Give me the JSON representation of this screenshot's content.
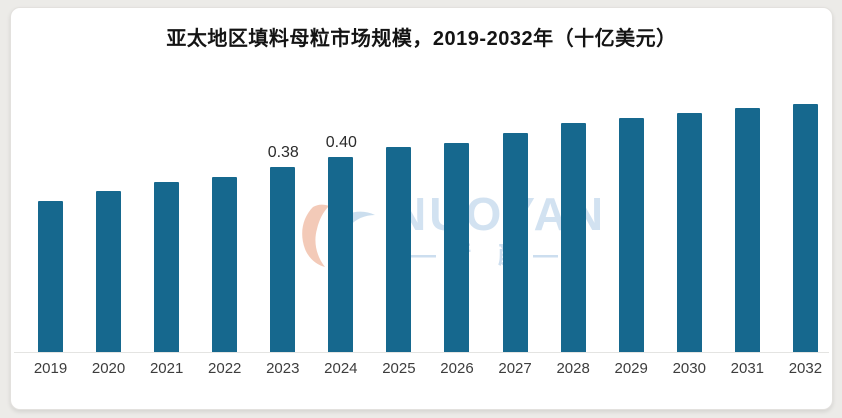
{
  "title": "亚太地区填料母粒市场规模，2019-2032年（十亿美元）",
  "watermark": {
    "brand": "NUOYAN",
    "brand_cn": "—精 颜—"
  },
  "chart_data": {
    "type": "bar",
    "title": "亚太地区填料母粒市场规模，2019-2032年（十亿美元）",
    "unit": "十亿美元",
    "categories": [
      "2019",
      "2020",
      "2021",
      "2022",
      "2023",
      "2024",
      "2025",
      "2026",
      "2027",
      "2028",
      "2029",
      "2030",
      "2031",
      "2032"
    ],
    "values": [
      0.31,
      0.33,
      0.35,
      0.36,
      0.38,
      0.4,
      0.42,
      0.43,
      0.45,
      0.47,
      0.48,
      0.49,
      0.5,
      0.51
    ],
    "data_labels": {
      "2023": "0.38",
      "2024": "0.40"
    },
    "bar_color": "#16688e",
    "xlabel": "",
    "ylabel": "",
    "ylim": [
      0,
      0.55
    ],
    "grid": false,
    "legend": false,
    "y_axis_ticks_visible": false
  }
}
